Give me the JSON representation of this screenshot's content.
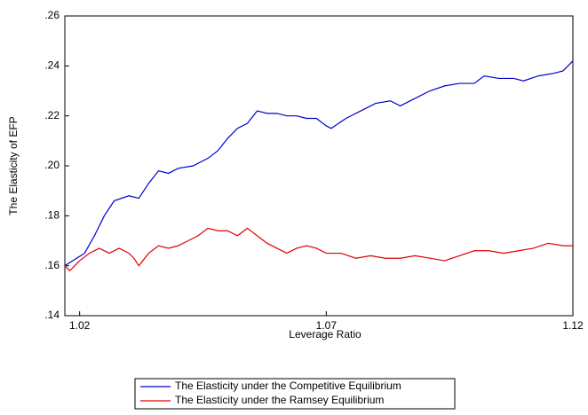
{
  "chart_data": {
    "type": "line",
    "x_label": "Leverage Ratio",
    "y_label": "The Elasticity of EFP",
    "xlim": [
      1.017,
      1.12
    ],
    "ylim": [
      0.14,
      0.26
    ],
    "xticks": [
      1.02,
      1.07,
      1.12
    ],
    "yticks": [
      {
        "value": 0.14,
        "label": ".14"
      },
      {
        "value": 0.16,
        "label": ".16"
      },
      {
        "value": 0.18,
        "label": ".18"
      },
      {
        "value": 0.2,
        "label": ".20"
      },
      {
        "value": 0.22,
        "label": ".22"
      },
      {
        "value": 0.24,
        "label": ".24"
      },
      {
        "value": 0.26,
        "label": ".26"
      }
    ],
    "series": [
      {
        "name": "The Elasticity under the Competitive Equilibrium",
        "color": "#0000cc",
        "x": [
          1.017,
          1.021,
          1.023,
          1.025,
          1.027,
          1.03,
          1.032,
          1.034,
          1.036,
          1.038,
          1.04,
          1.043,
          1.046,
          1.048,
          1.05,
          1.052,
          1.054,
          1.056,
          1.058,
          1.06,
          1.062,
          1.064,
          1.066,
          1.068,
          1.07,
          1.071,
          1.074,
          1.077,
          1.08,
          1.083,
          1.085,
          1.088,
          1.091,
          1.094,
          1.097,
          1.1,
          1.102,
          1.105,
          1.108,
          1.11,
          1.113,
          1.116,
          1.118,
          1.12
        ],
        "values": [
          0.16,
          0.165,
          0.172,
          0.18,
          0.186,
          0.188,
          0.187,
          0.193,
          0.198,
          0.197,
          0.199,
          0.2,
          0.203,
          0.206,
          0.211,
          0.215,
          0.217,
          0.222,
          0.221,
          0.221,
          0.22,
          0.22,
          0.219,
          0.219,
          0.216,
          0.215,
          0.219,
          0.222,
          0.225,
          0.226,
          0.224,
          0.227,
          0.23,
          0.232,
          0.233,
          0.233,
          0.236,
          0.235,
          0.235,
          0.234,
          0.236,
          0.237,
          0.238,
          0.242
        ]
      },
      {
        "name": "The Elasticity under the Ramsey Equilibrium",
        "color": "#e00000",
        "x": [
          1.017,
          1.018,
          1.02,
          1.022,
          1.024,
          1.026,
          1.028,
          1.03,
          1.031,
          1.032,
          1.034,
          1.036,
          1.038,
          1.04,
          1.042,
          1.044,
          1.046,
          1.048,
          1.05,
          1.052,
          1.054,
          1.056,
          1.058,
          1.06,
          1.062,
          1.064,
          1.066,
          1.068,
          1.07,
          1.073,
          1.076,
          1.079,
          1.082,
          1.085,
          1.088,
          1.091,
          1.094,
          1.097,
          1.1,
          1.103,
          1.106,
          1.109,
          1.112,
          1.115,
          1.118,
          1.12
        ],
        "values": [
          0.16,
          0.158,
          0.162,
          0.165,
          0.167,
          0.165,
          0.167,
          0.165,
          0.163,
          0.16,
          0.165,
          0.168,
          0.167,
          0.168,
          0.17,
          0.172,
          0.175,
          0.174,
          0.174,
          0.172,
          0.175,
          0.172,
          0.169,
          0.167,
          0.165,
          0.167,
          0.168,
          0.167,
          0.165,
          0.165,
          0.163,
          0.164,
          0.163,
          0.163,
          0.164,
          0.163,
          0.162,
          0.164,
          0.166,
          0.166,
          0.165,
          0.166,
          0.167,
          0.169,
          0.168,
          0.168
        ]
      }
    ]
  }
}
